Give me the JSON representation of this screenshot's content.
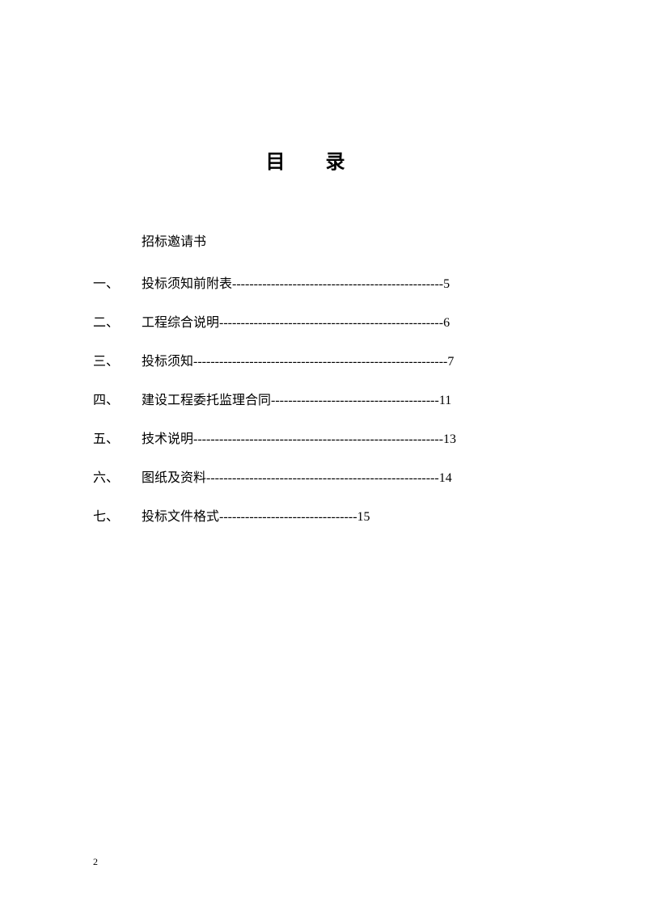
{
  "title": "目录",
  "subtitle": "招标邀请书",
  "toc": {
    "items": [
      {
        "number": "一、",
        "text": "投标须知前附表",
        "dashes": "------------------------------------------------",
        "page": "-5"
      },
      {
        "number": "二、",
        "text": "工程综合说明",
        "dashes": "---------------------------------------------------",
        "page": "-6"
      },
      {
        "number": "三、",
        "text": "投标须知",
        "dashes": "----------------------------------------------------------",
        "page": "-7"
      },
      {
        "number": "四、",
        "text": "建设工程委托监理合同",
        "dashes": "--------------------------------------",
        "page": "-11"
      },
      {
        "number": "五、",
        "text": "技术说明",
        "dashes": "---------------------------------------------------------",
        "page": "-13"
      },
      {
        "number": "六、",
        "text": "图纸及资料",
        "dashes": "-----------------------------------------------------",
        "page": "-14"
      },
      {
        "number": "七、",
        "text": "投标文件格式",
        "dashes": "-------------------------------",
        "page": "-15"
      }
    ]
  },
  "page_number": "2",
  "colors": {
    "background": "#ffffff",
    "text": "#000000"
  },
  "typography": {
    "title_fontsize": 24,
    "body_fontsize": 16,
    "page_number_fontsize": 12,
    "font_family": "SimSun"
  }
}
